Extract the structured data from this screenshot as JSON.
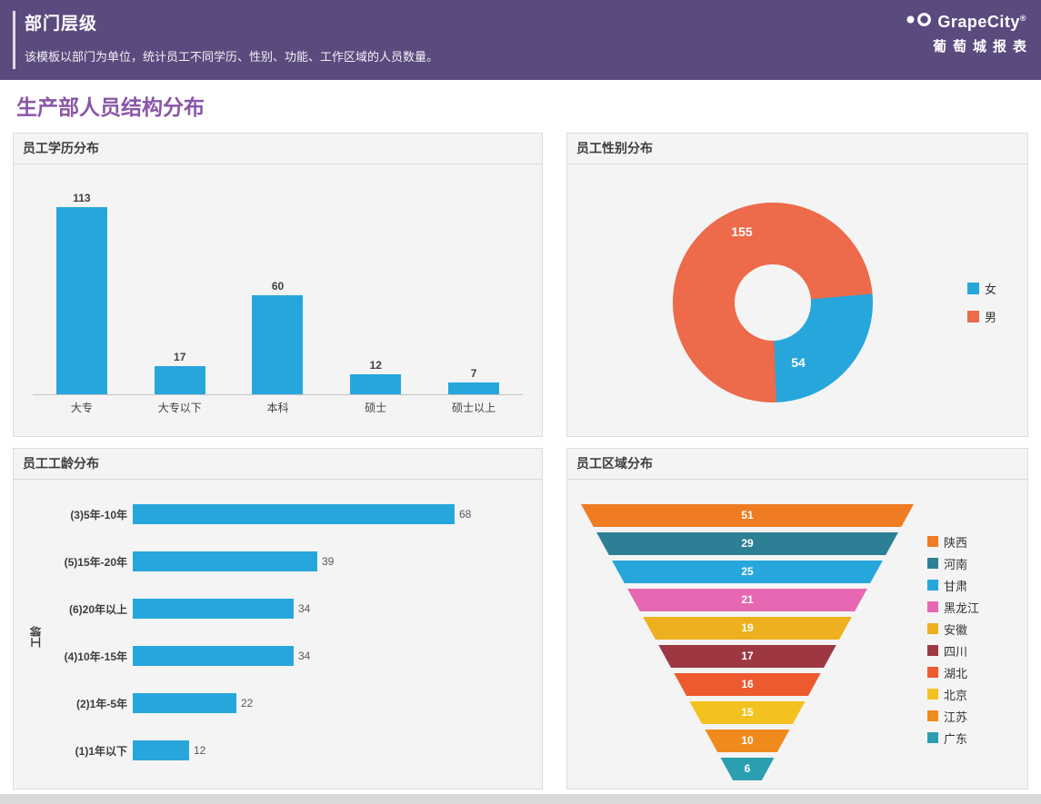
{
  "header": {
    "title": "部门层级",
    "subtitle": "该模板以部门为单位，统计员工不同学历、性别、功能、工作区域的人员数量。",
    "brand": "GrapeCity",
    "brand_reg": "®",
    "brand_cn": "葡萄城报表"
  },
  "page": {
    "title": "生产部人员结构分布"
  },
  "panels": {
    "education": {
      "title": "员工学历分布"
    },
    "gender": {
      "title": "员工性别分布"
    },
    "tenure": {
      "title": "员工工龄分布",
      "ylabel": "工龄"
    },
    "region": {
      "title": "员工区域分布"
    }
  },
  "chart_data": [
    {
      "type": "bar",
      "title": "员工学历分布",
      "categories": [
        "大专",
        "大专以下",
        "本科",
        "硕士",
        "硕士以上"
      ],
      "values": [
        113,
        17,
        60,
        12,
        7
      ],
      "bar_color": "#27a6dc",
      "ylim": [
        0,
        120
      ],
      "value_labels": true,
      "legend_position": "none"
    },
    {
      "type": "pie",
      "subtype": "donut",
      "title": "员工性别分布",
      "labels": [
        "男",
        "女"
      ],
      "values": [
        155,
        54
      ],
      "colors": [
        "#ed6a4b",
        "#27a6dc"
      ],
      "legend": [
        {
          "label": "女",
          "color": "#27a6dc"
        },
        {
          "label": "男",
          "color": "#ed6a4b"
        }
      ],
      "legend_position": "right"
    },
    {
      "type": "bar",
      "orientation": "horizontal",
      "title": "员工工龄分布",
      "ylabel": "工龄",
      "categories": [
        "(3)5年-10年",
        "(5)15年-20年",
        "(6)20年以上",
        "(4)10年-15年",
        "(2)1年-5年",
        "(1)1年以下"
      ],
      "values": [
        68,
        39,
        34,
        34,
        22,
        12
      ],
      "bar_color": "#27a6dc",
      "value_labels": true,
      "legend_position": "none"
    },
    {
      "type": "funnel",
      "title": "员工区域分布",
      "categories": [
        "陕西",
        "河南",
        "甘肃",
        "黑龙江",
        "安徽",
        "四川",
        "湖北",
        "北京",
        "江苏",
        "广东"
      ],
      "values": [
        51,
        29,
        25,
        21,
        19,
        17,
        16,
        15,
        10,
        6
      ],
      "colors": [
        "#ef7c23",
        "#2d7f96",
        "#27a6dc",
        "#e767b2",
        "#eeb01f",
        "#9d3843",
        "#ed5a2f",
        "#f4c21f",
        "#f08a1d",
        "#2b9fb0"
      ],
      "value_labels": true,
      "legend_position": "right"
    }
  ]
}
